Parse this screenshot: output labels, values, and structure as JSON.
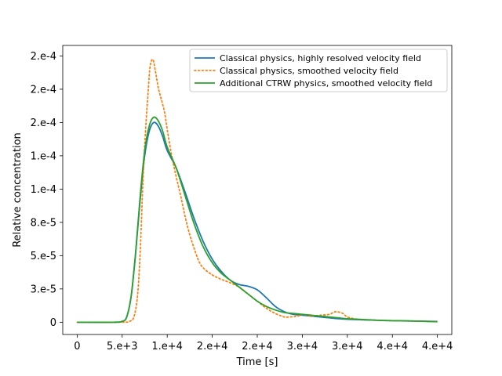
{
  "chart_data": {
    "type": "line",
    "xlabel": "Time [s]",
    "ylabel": "Relative concentration",
    "xlim": [
      -1600,
      41600
    ],
    "ylim": [
      -7,
      158
    ],
    "x_ticks": [
      {
        "value": 0,
        "label": "0"
      },
      {
        "value": 5000,
        "label": "5.e+3"
      },
      {
        "value": 10000,
        "label": "1.e+4"
      },
      {
        "value": 15000,
        "label": "2.e+4"
      },
      {
        "value": 20000,
        "label": "2.e+4"
      },
      {
        "value": 25000,
        "label": "3.e+4"
      },
      {
        "value": 30000,
        "label": "3.e+4"
      },
      {
        "value": 35000,
        "label": "4.e+4"
      },
      {
        "value": 40000,
        "label": "4.e+4"
      }
    ],
    "y_ticks": [
      {
        "value": 0,
        "label": "0"
      },
      {
        "value": 19,
        "label": "3.e-5"
      },
      {
        "value": 38,
        "label": "5.e-5"
      },
      {
        "value": 57,
        "label": "8.e-5"
      },
      {
        "value": 76,
        "label": "1.e-4"
      },
      {
        "value": 95,
        "label": "1.e-4"
      },
      {
        "value": 114,
        "label": "2.e-4"
      },
      {
        "value": 133,
        "label": "2.e-4"
      },
      {
        "value": 152,
        "label": "2.e-4"
      }
    ],
    "legend_position": "top-right",
    "series": [
      {
        "name": "Classical physics, highly resolved velocity field",
        "color": "#1f77b4",
        "style": "solid",
        "points": [
          [
            0,
            0
          ],
          [
            4000,
            0
          ],
          [
            5000,
            0.5
          ],
          [
            5500,
            3
          ],
          [
            6000,
            15
          ],
          [
            6500,
            40
          ],
          [
            7000,
            70
          ],
          [
            7500,
            95
          ],
          [
            8000,
            109
          ],
          [
            8500,
            114
          ],
          [
            9000,
            112
          ],
          [
            9500,
            106
          ],
          [
            10000,
            98
          ],
          [
            11000,
            88
          ],
          [
            12000,
            74
          ],
          [
            13000,
            59
          ],
          [
            14000,
            46
          ],
          [
            15000,
            36
          ],
          [
            16000,
            29
          ],
          [
            17000,
            24
          ],
          [
            18000,
            21.5
          ],
          [
            19000,
            20.5
          ],
          [
            20000,
            18.5
          ],
          [
            21000,
            14
          ],
          [
            22000,
            9
          ],
          [
            23000,
            6
          ],
          [
            24000,
            4.5
          ],
          [
            25000,
            4
          ],
          [
            26000,
            3.5
          ],
          [
            27000,
            3
          ],
          [
            28000,
            2.5
          ],
          [
            29000,
            2
          ],
          [
            30000,
            1.7
          ],
          [
            32000,
            1.3
          ],
          [
            34000,
            1
          ],
          [
            36000,
            0.8
          ],
          [
            38000,
            0.6
          ],
          [
            40000,
            0.4
          ]
        ]
      },
      {
        "name": "Classical physics, smoothed velocity field",
        "color": "#ff7f0e",
        "style": "dotted",
        "points": [
          [
            0,
            0
          ],
          [
            5000,
            0
          ],
          [
            5800,
            0.5
          ],
          [
            6300,
            3
          ],
          [
            6700,
            15
          ],
          [
            7000,
            40
          ],
          [
            7300,
            80
          ],
          [
            7600,
            110
          ],
          [
            7900,
            133
          ],
          [
            8100,
            146
          ],
          [
            8400,
            150
          ],
          [
            8700,
            143
          ],
          [
            9000,
            134
          ],
          [
            9300,
            128
          ],
          [
            9700,
            120
          ],
          [
            10000,
            110
          ],
          [
            10500,
            95
          ],
          [
            11000,
            83
          ],
          [
            11500,
            72
          ],
          [
            12000,
            60
          ],
          [
            12500,
            50
          ],
          [
            13000,
            42
          ],
          [
            13500,
            35
          ],
          [
            14000,
            31
          ],
          [
            15000,
            27
          ],
          [
            16000,
            24.5
          ],
          [
            17000,
            22.5
          ],
          [
            18000,
            20
          ],
          [
            19000,
            16
          ],
          [
            20000,
            12
          ],
          [
            21000,
            8
          ],
          [
            22000,
            5
          ],
          [
            23000,
            3
          ],
          [
            23500,
            3
          ],
          [
            24500,
            3.5
          ],
          [
            25000,
            4.5
          ],
          [
            25500,
            4
          ],
          [
            26000,
            3.5
          ],
          [
            27000,
            4
          ],
          [
            28000,
            4.5
          ],
          [
            28700,
            6
          ],
          [
            29500,
            5
          ],
          [
            30000,
            3
          ],
          [
            31000,
            1.8
          ],
          [
            32000,
            1.4
          ],
          [
            34000,
            1
          ],
          [
            36000,
            0.8
          ],
          [
            38000,
            0.6
          ],
          [
            40000,
            0.3
          ]
        ]
      },
      {
        "name": "Additional CTRW physics, smoothed velocity field",
        "color": "#2ca02c",
        "style": "solid",
        "points": [
          [
            0,
            0
          ],
          [
            4000,
            0
          ],
          [
            5000,
            0.5
          ],
          [
            5500,
            3
          ],
          [
            6000,
            15
          ],
          [
            6500,
            40
          ],
          [
            7000,
            72
          ],
          [
            7500,
            98
          ],
          [
            8000,
            112
          ],
          [
            8500,
            117
          ],
          [
            9000,
            115
          ],
          [
            9500,
            109
          ],
          [
            10000,
            100
          ],
          [
            11000,
            88
          ],
          [
            12000,
            72
          ],
          [
            13000,
            56
          ],
          [
            14000,
            43
          ],
          [
            15000,
            34
          ],
          [
            16000,
            28
          ],
          [
            17000,
            24
          ],
          [
            18000,
            20
          ],
          [
            19000,
            16
          ],
          [
            20000,
            12
          ],
          [
            21000,
            9
          ],
          [
            22000,
            7
          ],
          [
            23000,
            5.5
          ],
          [
            24000,
            5
          ],
          [
            25000,
            4.5
          ],
          [
            26000,
            4
          ],
          [
            27000,
            3.5
          ],
          [
            28000,
            3
          ],
          [
            29000,
            2.5
          ],
          [
            30000,
            2
          ],
          [
            32000,
            1.5
          ],
          [
            34000,
            1
          ],
          [
            36000,
            0.8
          ],
          [
            38000,
            0.6
          ],
          [
            40000,
            0.3
          ]
        ]
      }
    ]
  }
}
